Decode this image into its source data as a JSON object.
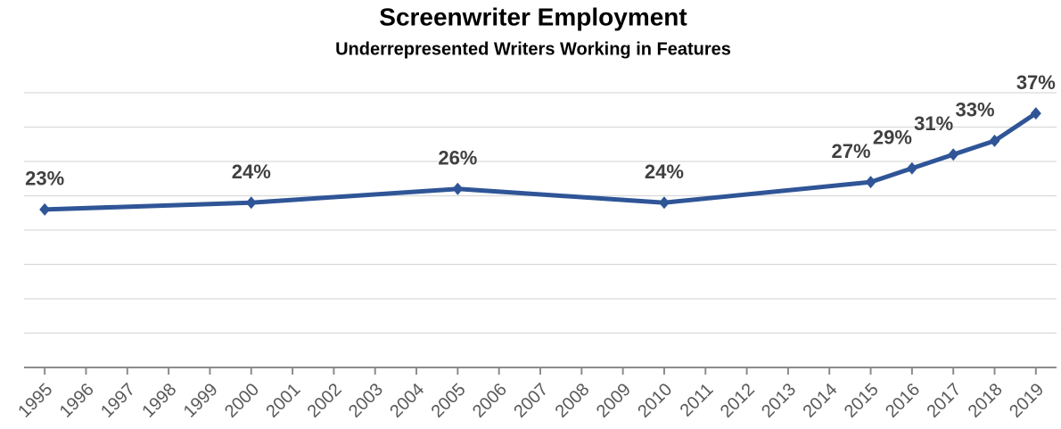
{
  "chart_data": {
    "type": "line",
    "title": "Screenwriter Employment",
    "subtitle": "Underrepresented Writers Working in Features",
    "x": [
      1995,
      2000,
      2005,
      2010,
      2015,
      2016,
      2017,
      2018,
      2019
    ],
    "series": [
      {
        "name": "Underrepresented Writers",
        "color": "#2f5597",
        "values": [
          23,
          24,
          26,
          24,
          27,
          29,
          31,
          33,
          37
        ],
        "value_labels": [
          "23%",
          "24%",
          "26%",
          "24%",
          "27%",
          "29%",
          "31%",
          "33%",
          "37%"
        ]
      }
    ],
    "xlim": [
      1994.5,
      2019.5
    ],
    "xticks": [
      1995,
      1996,
      1997,
      1998,
      1999,
      2000,
      2001,
      2002,
      2003,
      2004,
      2005,
      2006,
      2007,
      2008,
      2009,
      2010,
      2011,
      2012,
      2013,
      2014,
      2015,
      2016,
      2017,
      2018,
      2019
    ],
    "ylim": [
      0,
      40
    ],
    "yticks": [
      0,
      5,
      10,
      15,
      20,
      25,
      30,
      35,
      40
    ],
    "grid": true
  }
}
